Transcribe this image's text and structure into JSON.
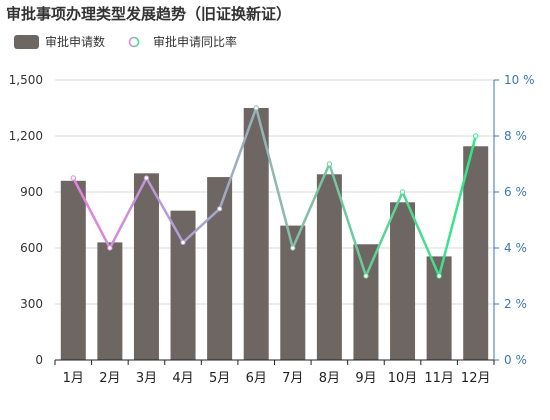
{
  "title": "审批事项办理类型发展趋势（旧证换新证）",
  "legend": {
    "bar_label": "审批申请数",
    "line_label": "审批申请同比率"
  },
  "colors": {
    "bar": "#6d6663",
    "grid": "#d8d8d8",
    "left_axis_text": "#333333",
    "right_axis": "#3a78b5",
    "line_gradient": [
      "#e87fe0",
      "#a9a3d2",
      "#8fb8b0",
      "#5fd293",
      "#2fe886"
    ]
  },
  "chart_data": {
    "type": "bar",
    "categories": [
      "1月",
      "2月",
      "3月",
      "4月",
      "5月",
      "6月",
      "7月",
      "8月",
      "9月",
      "10月",
      "11月",
      "12月"
    ],
    "series": [
      {
        "name": "审批申请数",
        "type": "bar",
        "axis": "left",
        "values": [
          960,
          630,
          1000,
          800,
          980,
          1350,
          720,
          995,
          620,
          845,
          555,
          1145
        ]
      },
      {
        "name": "审批申请同比率",
        "type": "line",
        "axis": "right",
        "unit": "%",
        "values": [
          6.5,
          4.0,
          6.5,
          4.2,
          5.4,
          9.0,
          4.0,
          7.0,
          3.0,
          6.0,
          3.0,
          8.0
        ]
      }
    ],
    "y_left": {
      "min": 0,
      "max": 1500,
      "ticks": [
        0,
        300,
        600,
        900,
        1200,
        1500
      ],
      "tick_labels": [
        "0",
        "300",
        "600",
        "900",
        "1,200",
        "1,500"
      ]
    },
    "y_right": {
      "min": 0,
      "max": 10,
      "ticks": [
        0,
        2,
        4,
        6,
        8,
        10
      ],
      "tick_labels": [
        "0 %",
        "2 %",
        "4 %",
        "6 %",
        "8 %",
        "10 %"
      ]
    },
    "grid": true,
    "legend_position": "top-left"
  }
}
